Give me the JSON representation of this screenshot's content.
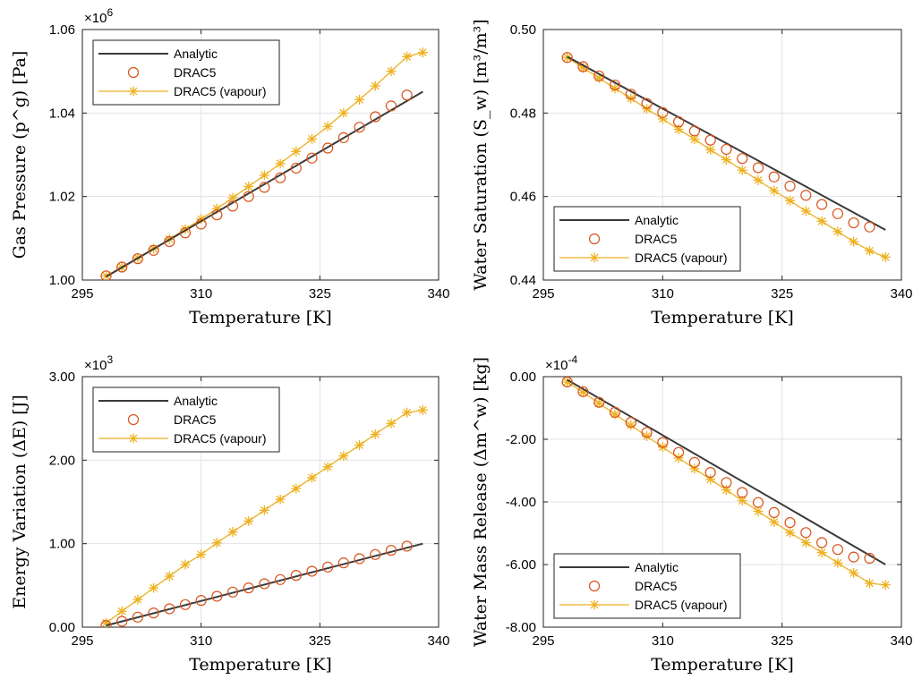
{
  "colors": {
    "analytic": "#3a3a3a",
    "drac5": "#d95319",
    "vapour": "#edb120"
  },
  "chart_data": [
    {
      "type": "line",
      "xlabel": "Temperature [K]",
      "ylabel": "Gas Pressure (p^g) [Pa]",
      "multiplier": "×10^6",
      "xlim": [
        295,
        340
      ],
      "ylim": [
        1.0,
        1.06
      ],
      "xticks": [
        295,
        310,
        325,
        340
      ],
      "xtick_labels": [
        "295",
        "310",
        "325",
        "340"
      ],
      "yticks": [
        1.0,
        1.02,
        1.04,
        1.06
      ],
      "ytick_labels": [
        "1.00",
        "1.02",
        "1.04",
        "1.06"
      ],
      "legend_position": "top-left",
      "series": [
        {
          "name": "Analytic",
          "style": "line",
          "x": [
            298,
            338
          ],
          "y": [
            1.0008,
            1.0451
          ]
        },
        {
          "name": "DRAC5",
          "style": "circle",
          "x": [
            298,
            300,
            302,
            304,
            306,
            308,
            310,
            312,
            314,
            316,
            318,
            320,
            322,
            324,
            326,
            328,
            330,
            332,
            334,
            336
          ],
          "y": [
            1.001,
            1.0031,
            1.0051,
            1.0071,
            1.0092,
            1.0113,
            1.0134,
            1.0156,
            1.0177,
            1.02,
            1.0222,
            1.0245,
            1.0268,
            1.0292,
            1.0316,
            1.0341,
            1.0366,
            1.0391,
            1.0417,
            1.0443
          ]
        },
        {
          "name": "DRAC5 (vapour)",
          "style": "star-line",
          "x": [
            298,
            300,
            302,
            304,
            306,
            308,
            310,
            312,
            314,
            316,
            318,
            320,
            322,
            324,
            326,
            328,
            330,
            332,
            334,
            336,
            338
          ],
          "y": [
            1.001,
            1.0031,
            1.0053,
            1.0075,
            1.0098,
            1.0122,
            1.0146,
            1.0171,
            1.0197,
            1.0224,
            1.0251,
            1.0279,
            1.0308,
            1.0338,
            1.0368,
            1.04,
            1.0432,
            1.0465,
            1.05,
            1.0535,
            1.0545
          ]
        }
      ]
    },
    {
      "type": "line",
      "xlabel": "Temperature [K]",
      "ylabel": "Water Saturation (S_w) [m³/m³]",
      "multiplier": "",
      "xlim": [
        295,
        340
      ],
      "ylim": [
        0.44,
        0.5
      ],
      "xticks": [
        295,
        310,
        325,
        340
      ],
      "xtick_labels": [
        "295",
        "310",
        "325",
        "340"
      ],
      "yticks": [
        0.44,
        0.46,
        0.48,
        0.5
      ],
      "ytick_labels": [
        "0.44",
        "0.46",
        "0.48",
        "0.50"
      ],
      "legend_position": "bottom-left",
      "series": [
        {
          "name": "Analytic",
          "style": "line",
          "x": [
            298,
            338
          ],
          "y": [
            0.4935,
            0.452
          ]
        },
        {
          "name": "DRAC5",
          "style": "circle",
          "x": [
            298,
            300,
            302,
            304,
            306,
            308,
            310,
            312,
            314,
            316,
            318,
            320,
            322,
            324,
            326,
            328,
            330,
            332,
            334,
            336
          ],
          "y": [
            0.4933,
            0.4911,
            0.4889,
            0.4867,
            0.4845,
            0.4823,
            0.4801,
            0.4779,
            0.4757,
            0.4735,
            0.4713,
            0.4691,
            0.4669,
            0.4647,
            0.4625,
            0.4603,
            0.4581,
            0.4559,
            0.4537,
            0.4527
          ]
        },
        {
          "name": "DRAC5 (vapour)",
          "style": "star-line",
          "x": [
            298,
            300,
            302,
            304,
            306,
            308,
            310,
            312,
            314,
            316,
            318,
            320,
            322,
            324,
            326,
            328,
            330,
            332,
            334,
            336,
            338
          ],
          "y": [
            0.4933,
            0.4908,
            0.4884,
            0.4859,
            0.4835,
            0.481,
            0.4786,
            0.4761,
            0.4737,
            0.4712,
            0.4688,
            0.4663,
            0.4639,
            0.4614,
            0.459,
            0.4565,
            0.4541,
            0.4516,
            0.4492,
            0.447,
            0.4455
          ]
        }
      ]
    },
    {
      "type": "line",
      "xlabel": "Temperature [K]",
      "ylabel": "Energy Variation (ΔE) [J]",
      "multiplier": "×10^3",
      "xlim": [
        295,
        340
      ],
      "ylim": [
        0,
        3.0
      ],
      "xticks": [
        295,
        310,
        325,
        340
      ],
      "xtick_labels": [
        "295",
        "310",
        "325",
        "340"
      ],
      "yticks": [
        0,
        1.0,
        2.0,
        3.0
      ],
      "ytick_labels": [
        "0.00",
        "1.00",
        "2.00",
        "3.00"
      ],
      "legend_position": "top-left",
      "series": [
        {
          "name": "Analytic",
          "style": "line",
          "x": [
            298,
            338
          ],
          "y": [
            0.02,
            1.0
          ]
        },
        {
          "name": "DRAC5",
          "style": "circle",
          "x": [
            298,
            300,
            302,
            304,
            306,
            308,
            310,
            312,
            314,
            316,
            318,
            320,
            322,
            324,
            326,
            328,
            330,
            332,
            334,
            336
          ],
          "y": [
            0.02,
            0.07,
            0.12,
            0.17,
            0.22,
            0.27,
            0.32,
            0.37,
            0.42,
            0.47,
            0.52,
            0.57,
            0.62,
            0.67,
            0.72,
            0.77,
            0.82,
            0.87,
            0.92,
            0.97
          ]
        },
        {
          "name": "DRAC5 (vapour)",
          "style": "star-line",
          "x": [
            298,
            300,
            302,
            304,
            306,
            308,
            310,
            312,
            314,
            316,
            318,
            320,
            322,
            324,
            326,
            328,
            330,
            332,
            334,
            336,
            338
          ],
          "y": [
            0.05,
            0.19,
            0.33,
            0.47,
            0.61,
            0.75,
            0.87,
            1.01,
            1.14,
            1.27,
            1.4,
            1.53,
            1.66,
            1.79,
            1.92,
            2.05,
            2.18,
            2.31,
            2.44,
            2.57,
            2.6
          ]
        }
      ]
    },
    {
      "type": "line",
      "xlabel": "Temperature [K]",
      "ylabel": "Water Mass Release (Δm^w) [kg]",
      "multiplier": "×10^-4",
      "xlim": [
        295,
        340
      ],
      "ylim": [
        -8.0,
        0
      ],
      "xticks": [
        295,
        310,
        325,
        340
      ],
      "xtick_labels": [
        "295",
        "310",
        "325",
        "340"
      ],
      "yticks": [
        -8.0,
        -6.0,
        -4.0,
        -2.0,
        0
      ],
      "ytick_labels": [
        "-8.00",
        "-6.00",
        "-4.00",
        "-2.00",
        "0.00"
      ],
      "legend_position": "bottom-left",
      "series": [
        {
          "name": "Analytic",
          "style": "line",
          "x": [
            298,
            338
          ],
          "y": [
            -0.1,
            -6.0
          ]
        },
        {
          "name": "DRAC5",
          "style": "circle",
          "x": [
            298,
            300,
            302,
            304,
            306,
            308,
            310,
            312,
            314,
            316,
            318,
            320,
            322,
            324,
            326,
            328,
            330,
            332,
            334,
            336
          ],
          "y": [
            -0.17,
            -0.48,
            -0.82,
            -1.14,
            -1.46,
            -1.78,
            -2.1,
            -2.42,
            -2.74,
            -3.06,
            -3.38,
            -3.7,
            -4.02,
            -4.34,
            -4.66,
            -4.98,
            -5.3,
            -5.52,
            -5.76,
            -5.8
          ]
        },
        {
          "name": "DRAC5 (vapour)",
          "style": "star-line",
          "x": [
            298,
            300,
            302,
            304,
            306,
            308,
            310,
            312,
            314,
            316,
            318,
            320,
            322,
            324,
            326,
            328,
            330,
            332,
            334,
            336,
            338
          ],
          "y": [
            -0.17,
            -0.5,
            -0.85,
            -1.2,
            -1.55,
            -1.9,
            -2.25,
            -2.6,
            -2.94,
            -3.28,
            -3.62,
            -3.96,
            -4.3,
            -4.64,
            -4.98,
            -5.3,
            -5.62,
            -5.95,
            -6.27,
            -6.6,
            -6.65
          ]
        }
      ]
    }
  ]
}
